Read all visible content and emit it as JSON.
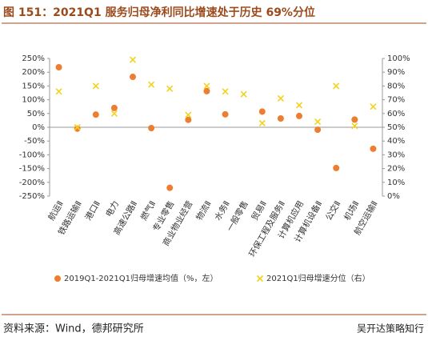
{
  "chart_data": {
    "type": "scatter",
    "title": "图 151：2021Q1 服务归母净利同比增速处于历史 69%分位",
    "categories": [
      "航运Ⅱ",
      "铁路运输Ⅱ",
      "港口Ⅱ",
      "电力",
      "高速公路Ⅱ",
      "燃气Ⅱ",
      "专业零售",
      "商业物业经营",
      "物流Ⅱ",
      "水务Ⅱ",
      "一般零售",
      "贸易Ⅱ",
      "环保工程及服务Ⅱ",
      "计算机应用",
      "计算机设备Ⅱ",
      "公交Ⅱ",
      "机场Ⅱ",
      "航空运输Ⅱ"
    ],
    "series": [
      {
        "name": "2019Q1-2021Q1归母增速均值（%，左）",
        "color": "#ed7d31",
        "marker": "circle",
        "values": [
          218,
          -5,
          46,
          70,
          183,
          -3,
          -220,
          27,
          131,
          47,
          null,
          57,
          32,
          41,
          -9,
          -148,
          28,
          -78
        ]
      },
      {
        "name": "2021Q1归母增速分位（右）",
        "color": "#f2d21b",
        "marker": "x",
        "axis": "y2",
        "values": [
          76,
          50,
          80,
          60,
          99,
          81,
          78,
          59,
          80,
          76,
          74,
          53,
          71,
          66,
          54,
          80,
          51,
          65
        ]
      }
    ],
    "ylim": [
      -250,
      250
    ],
    "yticks": [
      {
        "value": -250,
        "label": "-250%"
      },
      {
        "value": -200,
        "label": "-200%"
      },
      {
        "value": -150,
        "label": "-150%"
      },
      {
        "value": -100,
        "label": "-100%"
      },
      {
        "value": -50,
        "label": "-50%"
      },
      {
        "value": 0,
        "label": "0%"
      },
      {
        "value": 50,
        "label": "50%"
      },
      {
        "value": 100,
        "label": "100%"
      },
      {
        "value": 150,
        "label": "150%"
      },
      {
        "value": 200,
        "label": "200%"
      },
      {
        "value": 250,
        "label": "250%"
      }
    ],
    "y2lim": [
      0,
      100
    ],
    "y2ticks": [
      {
        "value": 0,
        "label": "0%"
      },
      {
        "value": 10,
        "label": "10%"
      },
      {
        "value": 20,
        "label": "20%"
      },
      {
        "value": 30,
        "label": "30%"
      },
      {
        "value": 40,
        "label": "40%"
      },
      {
        "value": 50,
        "label": "50%"
      },
      {
        "value": 60,
        "label": "60%"
      },
      {
        "value": 70,
        "label": "70%"
      },
      {
        "value": 80,
        "label": "80%"
      },
      {
        "value": 90,
        "label": "90%"
      },
      {
        "value": 100,
        "label": "100%"
      }
    ],
    "source": "资料来源：Wind，德邦研究所",
    "watermark": "吴开达策略知行"
  }
}
